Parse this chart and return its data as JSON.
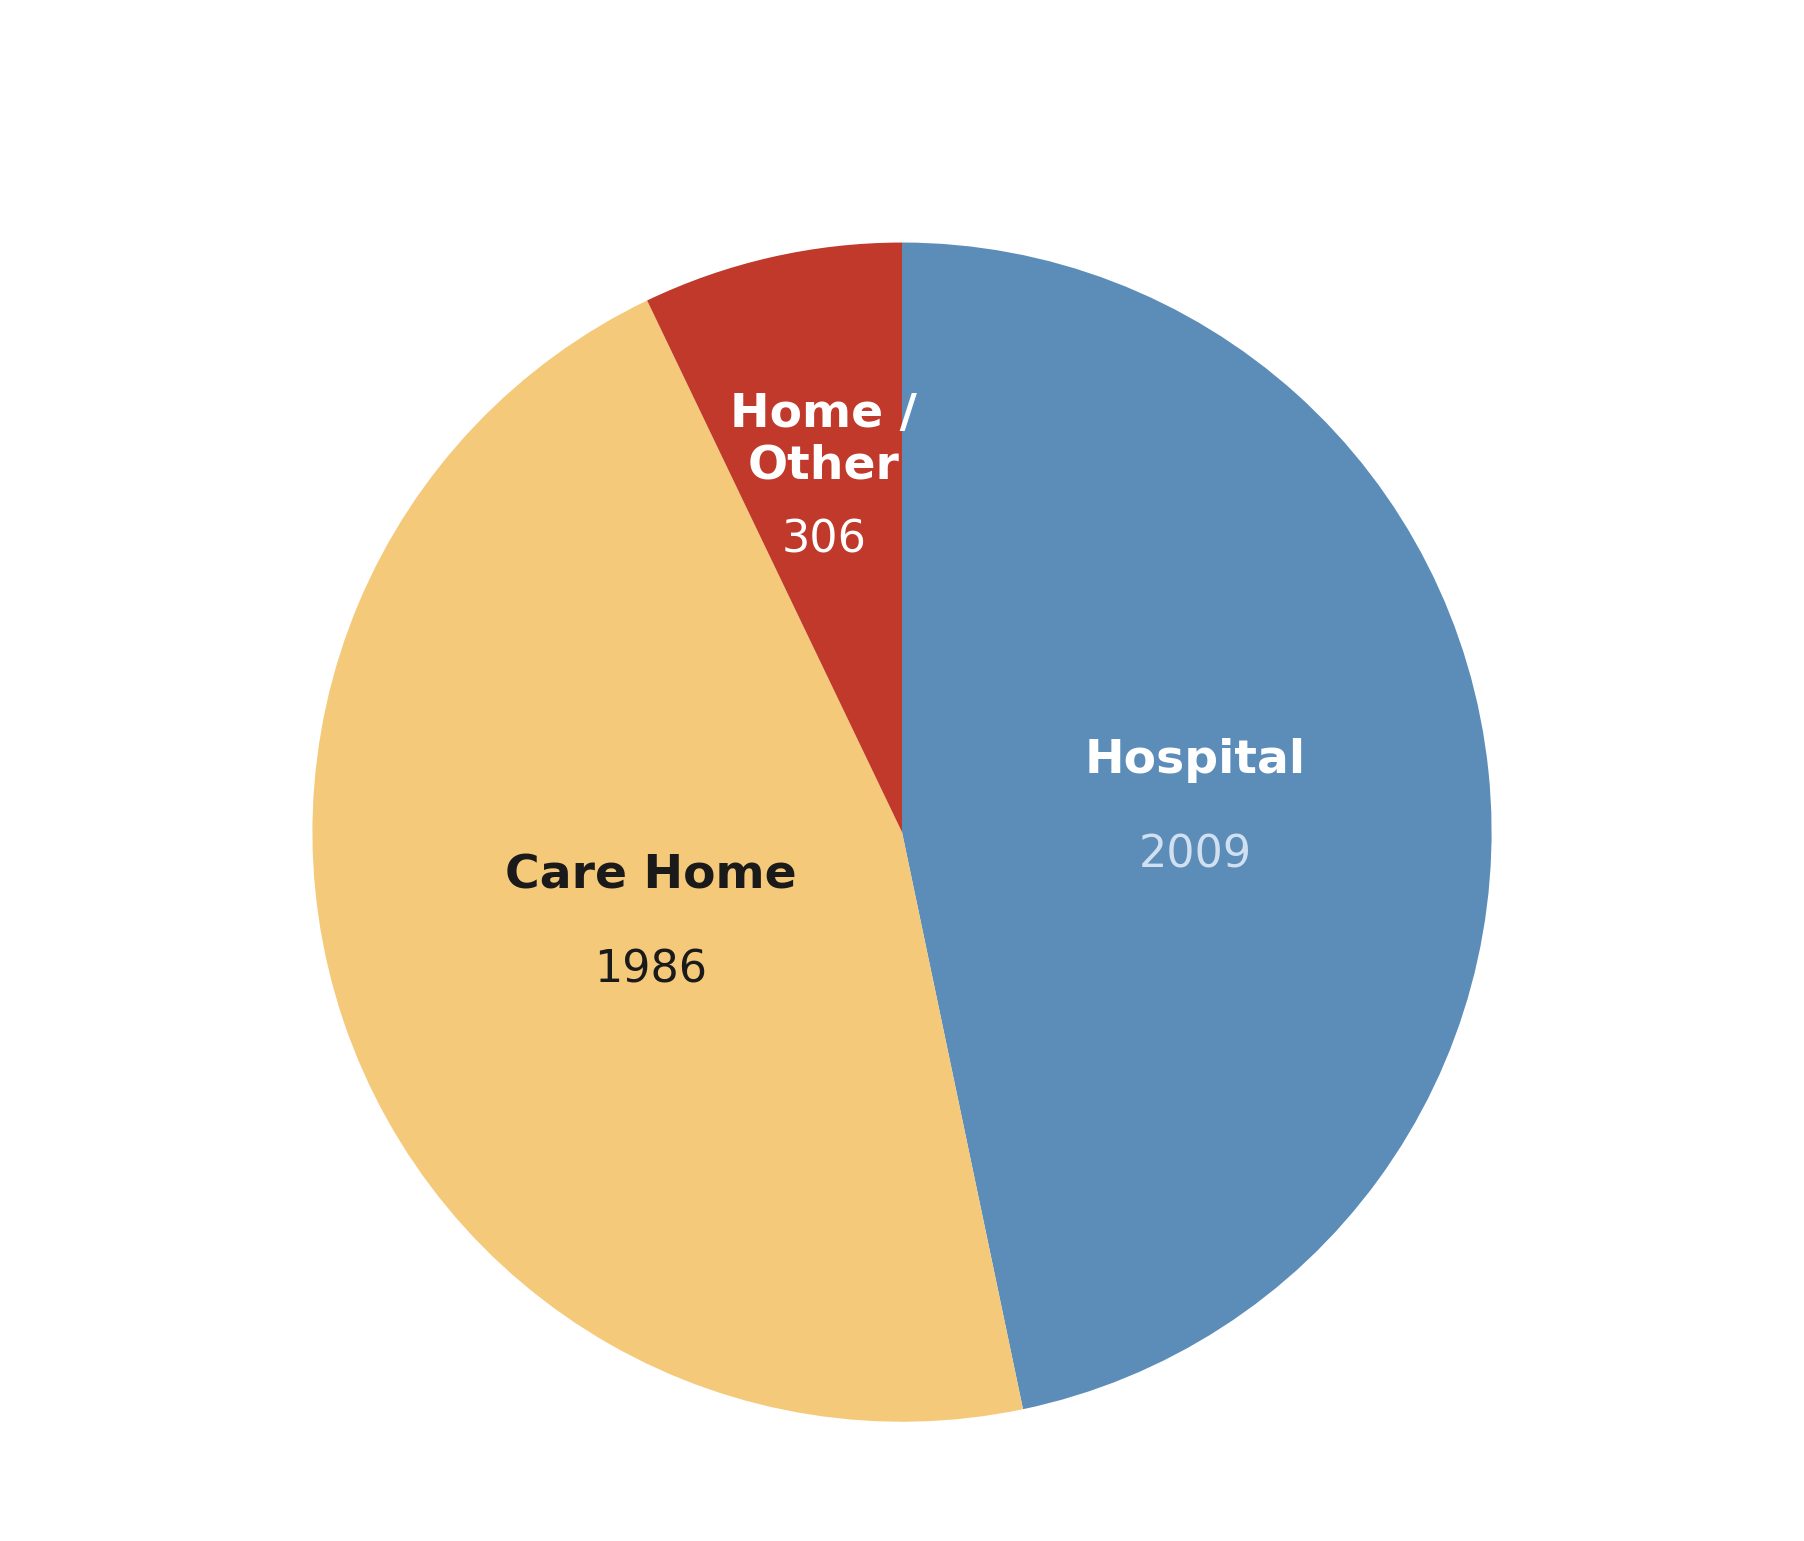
{
  "labels": [
    "Hospital",
    "Care Home",
    "Home / Other"
  ],
  "values": [
    2009,
    1986,
    306
  ],
  "colors": [
    "#5b8db8",
    "#f5c97a",
    "#c0392b"
  ],
  "label_colors": [
    "white",
    "#1a1a1a",
    "white"
  ],
  "value_colors": [
    "#d0e0f0",
    "#1a1a1a",
    "white"
  ],
  "bold_labels": [
    "Hospital",
    "Care Home",
    "Home /\nOther"
  ],
  "value_labels": [
    "2009",
    "1986",
    "306"
  ],
  "legend_labels": [
    "Hospital",
    "Care Home",
    "Home / Other"
  ],
  "legend_colors": [
    "#5b8db8",
    "#f5c97a",
    "#c0392b"
  ],
  "background_color": "#ffffff",
  "startangle": 90
}
